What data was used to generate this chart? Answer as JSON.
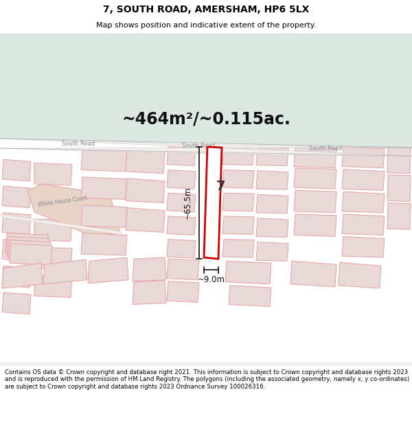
{
  "title_line1": "7, SOUTH ROAD, AMERSHAM, HP6 5LX",
  "title_line2": "Map shows position and indicative extent of the property.",
  "area_text": "~464m²/~0.115ac.",
  "footer_text": "Contains OS data © Crown copyright and database right 2021. This information is subject to Crown copyright and database rights 2023 and is reproduced with the permission of HM Land Registry. The polygons (including the associated geometry, namely x, y co-ordinates) are subject to Crown copyright and database rights 2023 Ordnance Survey 100026316.",
  "bg_map_color": "#dfe8e3",
  "bg_header_color": "#ffffff",
  "bg_footer_color": "#ffffff",
  "dim_height": "~65.5m",
  "dim_width": "~9.0m",
  "property_number": "7",
  "highlight_color": "#cc0000",
  "map_line_color": "#e8a0a0",
  "building_fill_color": "#e8d8d8",
  "road_color": "#f5f0ee",
  "road_label_color": "#888888",
  "white_house_court_fill": "#e8d5c8"
}
